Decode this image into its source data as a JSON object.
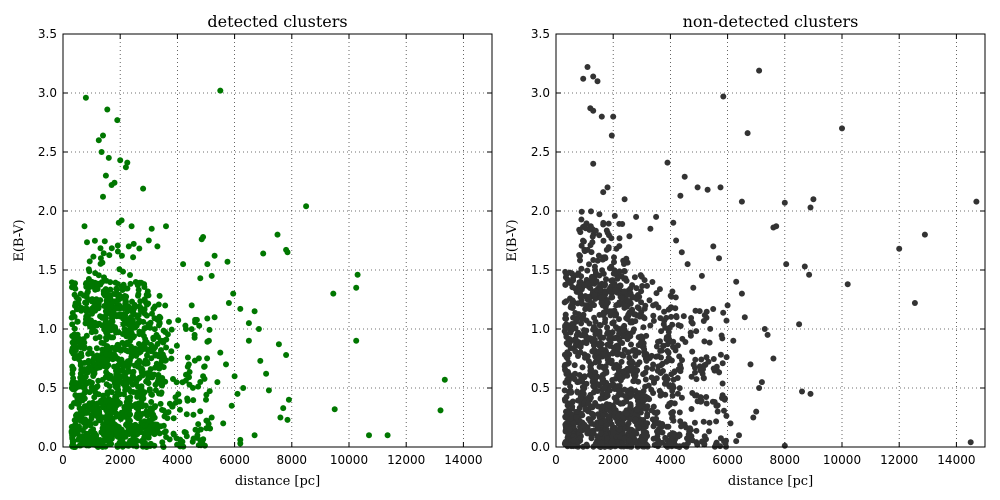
{
  "chart_data": [
    {
      "type": "scatter",
      "title": "detected clusters",
      "xlabel": "distance [pc]",
      "ylabel": "E(B-V)",
      "xlim": [
        0,
        15000
      ],
      "ylim": [
        0,
        3.5
      ],
      "x_ticks": [
        "0",
        "2000",
        "4000",
        "6000",
        "8000",
        "10000",
        "12000",
        "14000"
      ],
      "y_ticks": [
        "0.0",
        "0.5",
        "1.0",
        "1.5",
        "2.0",
        "2.5",
        "3.0",
        "3.5"
      ],
      "grid": true,
      "color": "#007700",
      "series": [
        {
          "name": "",
          "outliers": [
            [
              5500,
              3.02
            ],
            [
              800,
              2.96
            ],
            [
              1550,
              2.86
            ],
            [
              1900,
              2.77
            ],
            [
              1250,
              2.6
            ],
            [
              1400,
              2.64
            ],
            [
              1350,
              2.5
            ],
            [
              1600,
              2.45
            ],
            [
              2000,
              2.43
            ],
            [
              2250,
              2.41
            ],
            [
              2200,
              2.37
            ],
            [
              1500,
              2.3
            ],
            [
              1700,
              2.22
            ],
            [
              1800,
              2.24
            ],
            [
              2800,
              2.19
            ],
            [
              1400,
              2.12
            ],
            [
              8500,
              2.04
            ],
            [
              2050,
              1.92
            ],
            [
              1950,
              1.9
            ],
            [
              750,
              1.87
            ],
            [
              2400,
              1.87
            ],
            [
              3600,
              1.87
            ],
            [
              3100,
              1.85
            ],
            [
              7500,
              1.8
            ],
            [
              4900,
              1.78
            ],
            [
              4850,
              1.76
            ],
            [
              3000,
              1.75
            ],
            [
              7800,
              1.67
            ],
            [
              7850,
              1.65
            ],
            [
              7000,
              1.64
            ],
            [
              2300,
              1.7
            ],
            [
              3300,
              1.7
            ],
            [
              5300,
              1.62
            ],
            [
              5750,
              1.57
            ],
            [
              4200,
              1.55
            ],
            [
              5050,
              1.55
            ],
            [
              4800,
              1.43
            ],
            [
              5200,
              1.45
            ],
            [
              10300,
              1.46
            ],
            [
              10250,
              1.35
            ],
            [
              9450,
              1.3
            ],
            [
              5950,
              1.3
            ],
            [
              5800,
              1.22
            ],
            [
              6200,
              1.17
            ],
            [
              5300,
              1.1
            ],
            [
              6700,
              1.15
            ],
            [
              6500,
              1.05
            ],
            [
              6850,
              1.0
            ],
            [
              10250,
              0.9
            ],
            [
              6500,
              0.9
            ],
            [
              7550,
              0.87
            ],
            [
              7800,
              0.78
            ],
            [
              6900,
              0.73
            ],
            [
              7100,
              0.62
            ],
            [
              13350,
              0.57
            ],
            [
              7200,
              0.48
            ],
            [
              6300,
              0.5
            ],
            [
              7900,
              0.4
            ],
            [
              7700,
              0.33
            ],
            [
              9500,
              0.32
            ],
            [
              13200,
              0.31
            ],
            [
              7600,
              0.25
            ],
            [
              7850,
              0.23
            ],
            [
              6700,
              0.1
            ],
            [
              10700,
              0.1
            ],
            [
              11350,
              0.1
            ],
            [
              6200,
              0.06
            ],
            [
              6200,
              0.03
            ],
            [
              5200,
              0.25
            ],
            [
              5600,
              0.2
            ],
            [
              4700,
              0.1
            ],
            [
              5700,
              0.7
            ],
            [
              6000,
              0.6
            ],
            [
              5500,
              0.8
            ],
            [
              6100,
              0.45
            ],
            [
              5900,
              0.35
            ],
            [
              5400,
              0.55
            ],
            [
              4500,
              1.2
            ],
            [
              4300,
              1.0
            ],
            [
              4600,
              0.95
            ],
            [
              4900,
              0.6
            ],
            [
              5000,
              0.4
            ],
            [
              5100,
              0.9
            ],
            [
              4400,
              0.7
            ]
          ],
          "dense_clouds": [
            {
              "n": 700,
              "x": [
                300,
                3000
              ],
              "y": [
                0.0,
                1.4
              ],
              "seed": 11
            },
            {
              "n": 280,
              "x": [
                1500,
                3600
              ],
              "y": [
                0.1,
                1.3
              ],
              "seed": 23
            },
            {
              "n": 160,
              "x": [
                3000,
                5200
              ],
              "y": [
                0.0,
                1.1
              ],
              "seed": 37
            },
            {
              "n": 80,
              "x": [
                800,
                2700
              ],
              "y": [
                1.0,
                1.75
              ],
              "seed": 41
            }
          ]
        }
      ]
    },
    {
      "type": "scatter",
      "title": "non-detected clusters",
      "xlabel": "distance [pc]",
      "ylabel": "E(B-V)",
      "xlim": [
        0,
        15000
      ],
      "ylim": [
        0,
        3.5
      ],
      "x_ticks": [
        "0",
        "2000",
        "4000",
        "6000",
        "8000",
        "10000",
        "12000",
        "14000"
      ],
      "y_ticks": [
        "0.0",
        "0.5",
        "1.0",
        "1.5",
        "2.0",
        "2.5",
        "3.0",
        "3.5"
      ],
      "grid": true,
      "color": "#333333",
      "series": [
        {
          "name": "",
          "outliers": [
            [
              1100,
              3.22
            ],
            [
              950,
              3.12
            ],
            [
              1450,
              3.1
            ],
            [
              1300,
              3.14
            ],
            [
              7100,
              3.19
            ],
            [
              5850,
              2.97
            ],
            [
              1300,
              2.85
            ],
            [
              1200,
              2.87
            ],
            [
              1600,
              2.8
            ],
            [
              2000,
              2.8
            ],
            [
              1950,
              2.64
            ],
            [
              6700,
              2.66
            ],
            [
              10000,
              2.7
            ],
            [
              3900,
              2.41
            ],
            [
              1300,
              2.4
            ],
            [
              4500,
              2.29
            ],
            [
              14700,
              2.08
            ],
            [
              9000,
              2.1
            ],
            [
              8900,
              2.03
            ],
            [
              8000,
              2.07
            ],
            [
              6500,
              2.08
            ],
            [
              5300,
              2.18
            ],
            [
              5750,
              2.2
            ],
            [
              4950,
              2.2
            ],
            [
              4350,
              2.13
            ],
            [
              1800,
              2.2
            ],
            [
              1650,
              2.16
            ],
            [
              7700,
              1.87
            ],
            [
              7600,
              1.86
            ],
            [
              12000,
              1.68
            ],
            [
              12900,
              1.8
            ],
            [
              8050,
              1.55
            ],
            [
              8700,
              1.53
            ],
            [
              8850,
              1.46
            ],
            [
              10200,
              1.38
            ],
            [
              12550,
              1.22
            ],
            [
              8500,
              1.04
            ],
            [
              7300,
              1.0
            ],
            [
              8600,
              0.47
            ],
            [
              8900,
              0.45
            ],
            [
              8000,
              0.01
            ],
            [
              14500,
              0.04
            ],
            [
              6300,
              0.05
            ],
            [
              7000,
              0.3
            ],
            [
              7200,
              0.55
            ],
            [
              6800,
              0.7
            ],
            [
              7600,
              0.75
            ],
            [
              6600,
              1.1
            ],
            [
              6500,
              1.3
            ],
            [
              6300,
              1.4
            ],
            [
              5700,
              1.6
            ],
            [
              5500,
              1.7
            ],
            [
              6000,
              1.2
            ],
            [
              6200,
              0.9
            ],
            [
              5900,
              0.4
            ],
            [
              6100,
              0.2
            ],
            [
              6400,
              0.1
            ],
            [
              7400,
              0.95
            ],
            [
              7100,
              0.5
            ],
            [
              6900,
              0.25
            ],
            [
              4100,
              1.9
            ],
            [
              3500,
              1.95
            ],
            [
              3300,
              1.85
            ],
            [
              2800,
              1.95
            ],
            [
              2400,
              2.1
            ],
            [
              4200,
              1.75
            ],
            [
              4600,
              1.55
            ],
            [
              5100,
              1.45
            ],
            [
              4800,
              1.35
            ],
            [
              4400,
              1.65
            ]
          ],
          "dense_clouds": [
            {
              "n": 800,
              "x": [
                300,
                3200
              ],
              "y": [
                0.0,
                1.5
              ],
              "seed": 53
            },
            {
              "n": 350,
              "x": [
                1500,
                4200
              ],
              "y": [
                0.0,
                1.4
              ],
              "seed": 67
            },
            {
              "n": 200,
              "x": [
                3500,
                6000
              ],
              "y": [
                0.0,
                1.2
              ],
              "seed": 71
            },
            {
              "n": 120,
              "x": [
                800,
                2600
              ],
              "y": [
                1.2,
                2.0
              ],
              "seed": 89
            }
          ]
        }
      ]
    }
  ]
}
